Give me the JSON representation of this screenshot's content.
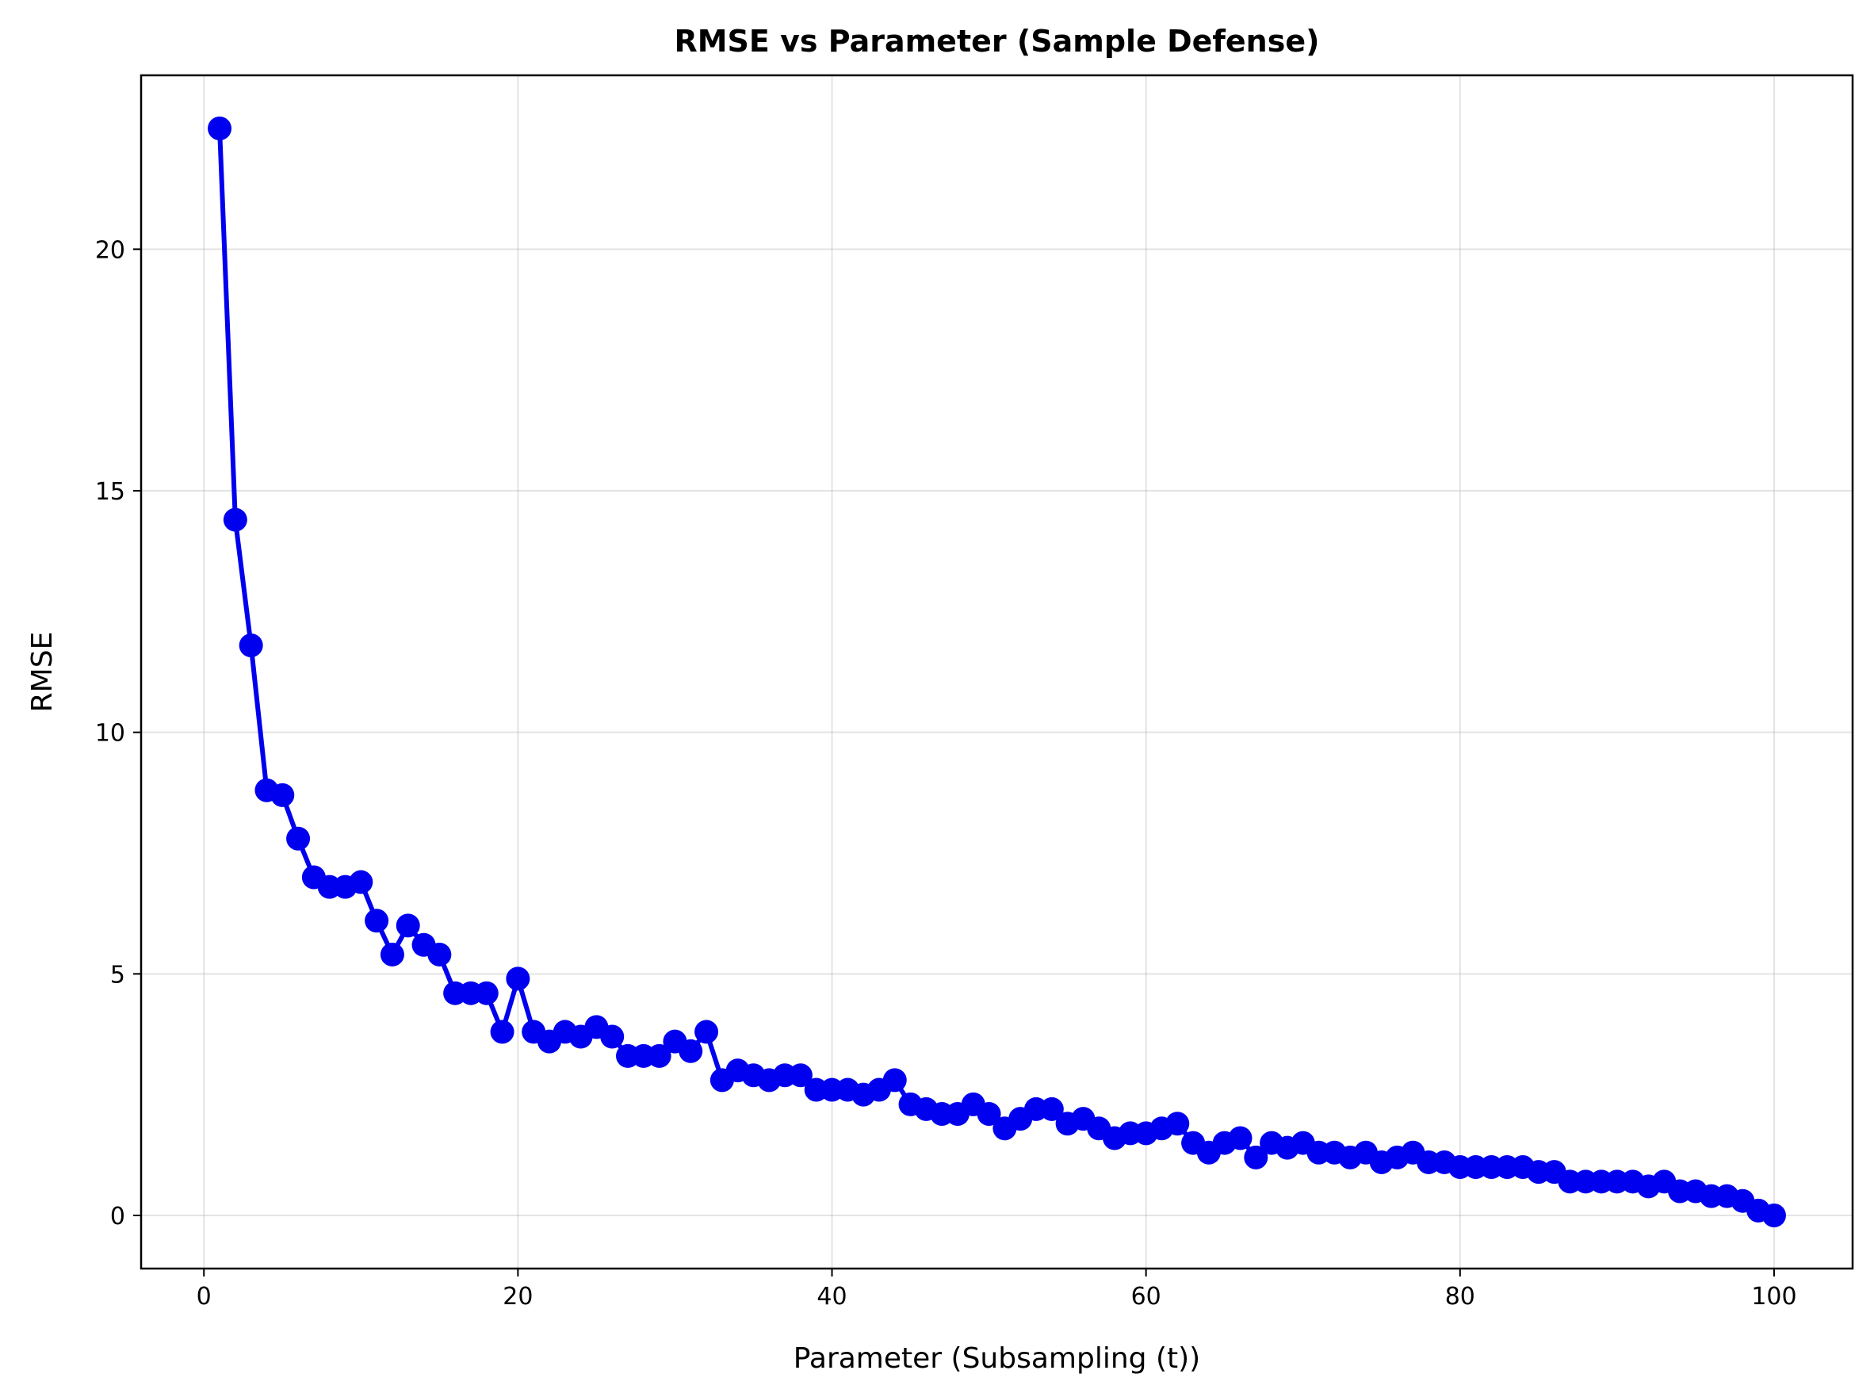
{
  "chart_data": {
    "type": "line",
    "title": "RMSE vs Parameter (Sample Defense)",
    "xlabel": "Parameter (Subsampling (t))",
    "ylabel": "RMSE",
    "xlim": [
      -4,
      105
    ],
    "ylim": [
      -1.1,
      23.6
    ],
    "xticks": [
      0,
      20,
      40,
      60,
      80,
      100
    ],
    "yticks": [
      0,
      5,
      10,
      15,
      20
    ],
    "grid": true,
    "color": "#0000ee",
    "marker": "circle",
    "x": [
      1,
      2,
      3,
      4,
      5,
      6,
      7,
      8,
      9,
      10,
      11,
      12,
      13,
      14,
      15,
      16,
      17,
      18,
      19,
      20,
      21,
      22,
      23,
      24,
      25,
      26,
      27,
      28,
      29,
      30,
      31,
      32,
      33,
      34,
      35,
      36,
      37,
      38,
      39,
      40,
      41,
      42,
      43,
      44,
      45,
      46,
      47,
      48,
      49,
      50,
      51,
      52,
      53,
      54,
      55,
      56,
      57,
      58,
      59,
      60,
      61,
      62,
      63,
      64,
      65,
      66,
      67,
      68,
      69,
      70,
      71,
      72,
      73,
      74,
      75,
      76,
      77,
      78,
      79,
      80,
      81,
      82,
      83,
      84,
      85,
      86,
      87,
      88,
      89,
      90,
      91,
      92,
      93,
      94,
      95,
      96,
      97,
      98,
      99,
      100
    ],
    "series": [
      {
        "values": [
          22.5,
          14.4,
          11.8,
          8.8,
          8.7,
          7.8,
          7.0,
          6.8,
          6.8,
          6.9,
          6.1,
          5.4,
          6.0,
          5.6,
          5.4,
          4.6,
          4.6,
          4.6,
          3.8,
          4.9,
          3.8,
          3.6,
          3.8,
          3.7,
          3.9,
          3.7,
          3.3,
          3.3,
          3.3,
          3.6,
          3.4,
          3.8,
          2.8,
          3.0,
          2.9,
          2.8,
          2.9,
          2.9,
          2.6,
          2.6,
          2.6,
          2.5,
          2.6,
          2.8,
          2.3,
          2.2,
          2.1,
          2.1,
          2.3,
          2.1,
          1.8,
          2.0,
          2.2,
          2.2,
          1.9,
          2.0,
          1.8,
          1.6,
          1.7,
          1.7,
          1.8,
          1.9,
          1.5,
          1.3,
          1.5,
          1.6,
          1.2,
          1.5,
          1.4,
          1.5,
          1.3,
          1.3,
          1.2,
          1.3,
          1.1,
          1.2,
          1.3,
          1.1,
          1.1,
          1.0,
          1.0,
          1.0,
          1.0,
          1.0,
          0.9,
          0.9,
          0.7,
          0.7,
          0.7,
          0.7,
          0.7,
          0.6,
          0.7,
          0.5,
          0.5,
          0.4,
          0.4,
          0.3,
          0.1,
          0.0
        ]
      }
    ]
  }
}
